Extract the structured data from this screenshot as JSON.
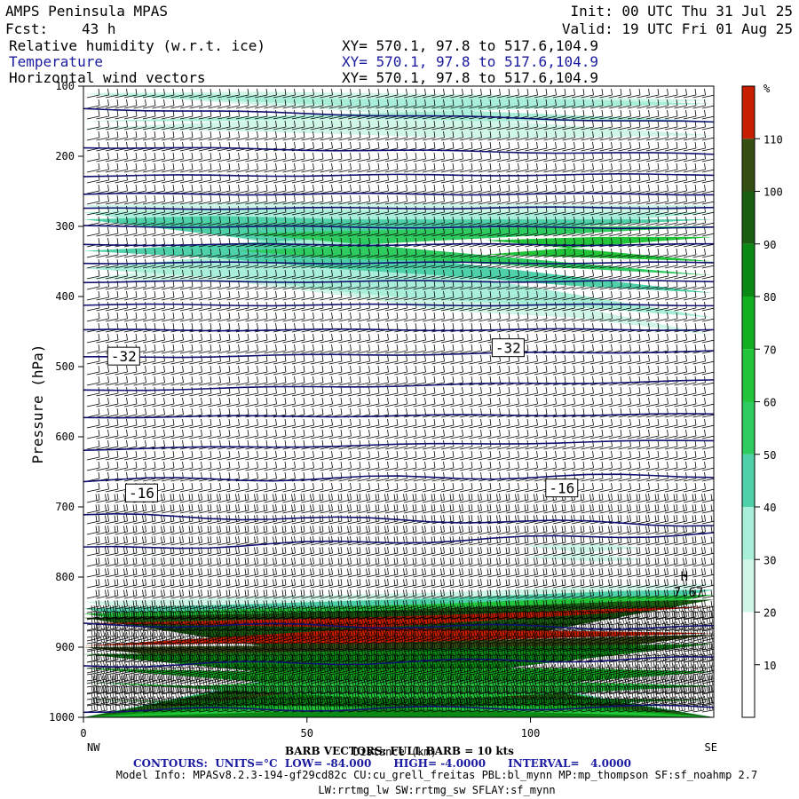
{
  "header": {
    "title": "AMPS Peninsula MPAS",
    "fcst_label": "Fcst:",
    "fcst_value": "43 h",
    "init": "Init: 00 UTC Thu 31 Jul 25",
    "valid": "Valid: 19 UTC Fri 01 Aug 25",
    "fields": [
      {
        "name": "Relative humidity (w.r.t. ice)",
        "xy": "XY= 570.1, 97.8 to 517.6,104.9",
        "color": "#000000"
      },
      {
        "name": "Temperature",
        "xy": "XY= 570.1, 97.8 to 517.6,104.9",
        "color": "#1a1aa0"
      },
      {
        "name": "Horizontal wind vectors",
        "xy": "XY= 570.1, 97.8 to 517.6,104.9",
        "color": "#000000"
      }
    ]
  },
  "footer": {
    "barb_note": "BARB VECTORS: FULL BARB = 10 kts",
    "distance_label": "Distance (km)",
    "contours_line": "CONTOURS:  UNITS=°C  LOW= -84.000      HIGH= -4.0000      INTERVAL=   4.0000",
    "model_info": "Model Info: MPASv8.2.3-194-gf29cd82c CU:cu_grell_freitas PBL:bl_mynn MP:mp_thompson SF:sf_noahmp 2.7",
    "model_info2": "LW:rrtmg_lw SW:rrtmg_sw SFLAY:sf_mynn"
  },
  "colors": {
    "temperature_contour": "#101070",
    "rh_30": "#d0f6e8",
    "rh_40": "#a8eed8",
    "rh_50": "#4ed0a8",
    "rh_60": "#2ecc60",
    "rh_70": "#22c43a",
    "rh_80": "#12b020",
    "rh_90": "#0a8a14",
    "rh_100": "#1a5e12",
    "rh_110": "#354e12",
    "rh_max": "#c81e00"
  },
  "chart_data": {
    "type": "heatmap",
    "title": "Relative humidity (w.r.t. ice), Temperature, Horizontal wind vectors",
    "xlabel": "Distance (km)",
    "ylabel": "Pressure (hPa)",
    "x_ticks": [
      "0",
      "50",
      "100"
    ],
    "x_range": [
      0,
      141
    ],
    "endpoint_labels": [
      "NW",
      "SE"
    ],
    "y_ticks": [
      "100",
      "200",
      "300",
      "400",
      "500",
      "600",
      "700",
      "800",
      "900",
      "1000"
    ],
    "y_range": [
      100,
      1000
    ],
    "y_reversed": true,
    "colorbar": {
      "unit": "%",
      "labels": [
        "10",
        "20",
        "30",
        "40",
        "50",
        "60",
        "70",
        "80",
        "90",
        "100",
        "110"
      ],
      "levels": [
        0,
        10,
        20,
        30,
        40,
        50,
        60,
        70,
        80,
        90,
        100,
        110,
        120
      ]
    },
    "contour_labels": [
      {
        "text": "-32",
        "x": 9,
        "y": 485
      },
      {
        "text": "-32",
        "x": 95,
        "y": 473
      },
      {
        "text": "-16",
        "x": 13,
        "y": 680
      },
      {
        "text": "-16",
        "x": 107,
        "y": 673
      }
    ],
    "extremum": {
      "text": "H",
      "value": "7.67",
      "x": 130,
      "y": 815
    },
    "temperature_contours_hpa": [
      {
        "left": 132,
        "right": 152
      },
      {
        "left": 187,
        "right": 197
      },
      {
        "left": 228,
        "right": 226
      },
      {
        "left": 254,
        "right": 254
      },
      {
        "left": 275,
        "right": 273
      },
      {
        "left": 300,
        "right": 302
      },
      {
        "left": 326,
        "right": 326
      },
      {
        "left": 352,
        "right": 352
      },
      {
        "left": 379,
        "right": 378
      },
      {
        "left": 412,
        "right": 412
      },
      {
        "left": 448,
        "right": 447
      },
      {
        "left": 487,
        "right": 478
      },
      {
        "left": 534,
        "right": 520
      },
      {
        "left": 572,
        "right": 568
      },
      {
        "left": 618,
        "right": 605
      },
      {
        "left": 662,
        "right": 655
      },
      {
        "left": 712,
        "right": 725
      },
      {
        "left": 760,
        "right": 738
      },
      {
        "left": 868,
        "right": 872
      },
      {
        "left": 926,
        "right": 916
      },
      {
        "left": 990,
        "right": 985
      }
    ]
  }
}
